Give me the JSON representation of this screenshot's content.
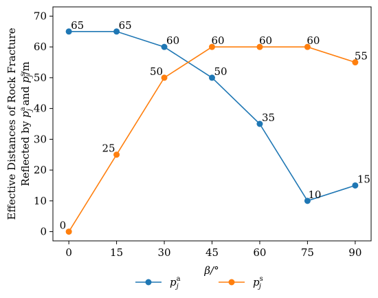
{
  "chart_data": {
    "type": "line",
    "title": "",
    "xlabel": "β/°",
    "ylabel_line1": "Effective Distances of Rock Fracture",
    "ylabel_line2": "Reflected by p_j^a and p_j^s/m",
    "x": [
      0,
      15,
      30,
      45,
      60,
      75,
      90
    ],
    "xlim": [
      -5,
      95
    ],
    "ylim": [
      -3,
      73
    ],
    "x_ticks": [
      0,
      15,
      30,
      45,
      60,
      75,
      90
    ],
    "y_ticks": [
      0,
      10,
      20,
      30,
      40,
      50,
      60,
      70
    ],
    "grid": false,
    "legend_position": "bottom-center",
    "series": [
      {
        "name": "p_j^a",
        "name_base": "p",
        "name_sub": "j",
        "name_sup": "a",
        "color": "#1f77b4",
        "values": [
          65,
          65,
          60,
          50,
          35,
          10,
          15
        ],
        "labels": [
          "65",
          "65",
          "60",
          "50",
          "35",
          "10",
          "15"
        ]
      },
      {
        "name": "p_j^s",
        "name_base": "p",
        "name_sub": "j",
        "name_sup": "s",
        "color": "#ff7f0e",
        "values": [
          0,
          25,
          50,
          60,
          60,
          60,
          55
        ],
        "labels": [
          "0",
          "25",
          "50",
          "60",
          "60",
          "60",
          "55"
        ]
      }
    ]
  }
}
